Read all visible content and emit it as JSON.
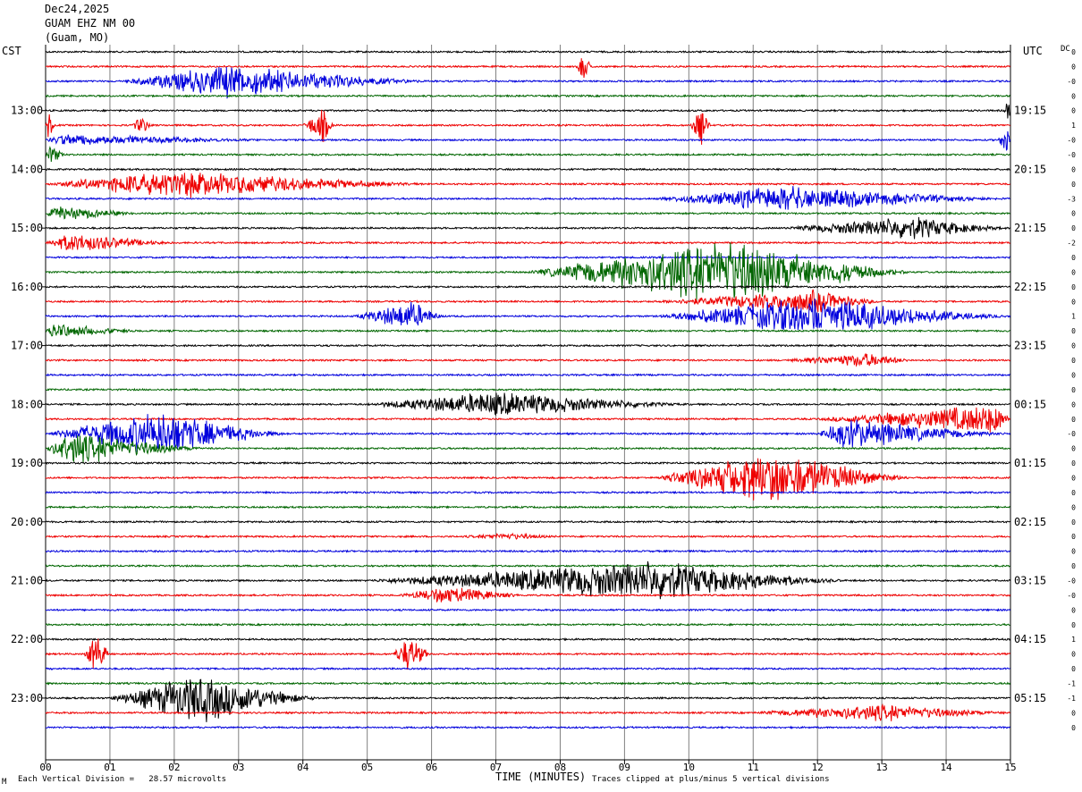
{
  "header": {
    "date": "Dec24,2025",
    "station": "GUAM EHZ NM 00",
    "location": "(Guam, MO)"
  },
  "labels": {
    "left_tz": "CST",
    "right_tz": "UTC",
    "dc_label": "DC",
    "x_title": "TIME (MINUTES)",
    "scale_note": "Each Vertical Division =   28.57 microvolts",
    "clip_note": "Traces clipped at plus/minus 5 vertical divisions",
    "corner_mark": "M"
  },
  "chart_data": {
    "type": "line",
    "title": "GUAM EHZ NM 00",
    "xlabel": "TIME (MINUTES)",
    "xlim": [
      0,
      15
    ],
    "x_ticks": [
      "00",
      "01",
      "02",
      "03",
      "04",
      "05",
      "06",
      "07",
      "08",
      "09",
      "10",
      "11",
      "12",
      "13",
      "14",
      "15"
    ],
    "left_hour_labels": [
      "13:00",
      "14:00",
      "15:00",
      "16:00",
      "17:00",
      "18:00",
      "19:00",
      "20:00",
      "21:00",
      "22:00",
      "23:00"
    ],
    "right_hour_labels": [
      "19:15",
      "20:15",
      "21:15",
      "22:15",
      "23:15",
      "00:15",
      "01:15",
      "02:15",
      "03:15",
      "04:15",
      "05:15"
    ],
    "trace_colors": [
      "#000000",
      "#ee0000",
      "#0000dd",
      "#006600"
    ],
    "dc_offsets": [
      "0",
      "0",
      "-0",
      "0",
      "0",
      "1",
      "-0",
      "-0",
      "0",
      "0",
      "-3",
      "0",
      "0",
      "-2",
      "0",
      "0",
      "0",
      "0",
      "1",
      "0",
      "0",
      "0",
      "0",
      "0",
      "0",
      "0",
      "-0",
      "0",
      "0",
      "0",
      "0",
      "0",
      "0",
      "0",
      "0",
      "0",
      "-0",
      "-0",
      "0",
      "0",
      "1",
      "0",
      "0",
      "-1",
      "-1",
      "0",
      "0"
    ],
    "grid": true,
    "events": [
      {
        "trace": 2,
        "start": 1.2,
        "end": 6.0,
        "amp": 1.2,
        "peak": 2.8
      },
      {
        "trace": 1,
        "start": 8.25,
        "end": 8.5,
        "amp": 1.2,
        "peak": 8.35
      },
      {
        "trace": 4,
        "start": 14.9,
        "end": 15.0,
        "amp": 1.0,
        "peak": 14.97
      },
      {
        "trace": 5,
        "start": 0.0,
        "end": 0.15,
        "amp": 1.0,
        "peak": 0.05
      },
      {
        "trace": 5,
        "start": 1.35,
        "end": 1.65,
        "amp": 0.8,
        "peak": 1.5
      },
      {
        "trace": 5,
        "start": 4.0,
        "end": 4.5,
        "amp": 1.3,
        "peak": 4.3
      },
      {
        "trace": 5,
        "start": 10.0,
        "end": 10.35,
        "amp": 1.4,
        "peak": 10.2
      },
      {
        "trace": 6,
        "start": 0.0,
        "end": 3.5,
        "amp": 0.4,
        "peak": 0.3
      },
      {
        "trace": 6,
        "start": 14.8,
        "end": 15.0,
        "amp": 1.0,
        "peak": 14.95
      },
      {
        "trace": 7,
        "start": 0.0,
        "end": 0.3,
        "amp": 0.8,
        "peak": 0.1
      },
      {
        "trace": 9,
        "start": 0.0,
        "end": 6.0,
        "amp": 1.0,
        "peak": 2.0
      },
      {
        "trace": 10,
        "start": 9.5,
        "end": 15.0,
        "amp": 0.9,
        "peak": 11.5
      },
      {
        "trace": 11,
        "start": 0.0,
        "end": 1.5,
        "amp": 0.5,
        "peak": 0.2
      },
      {
        "trace": 12,
        "start": 11.5,
        "end": 15.0,
        "amp": 0.8,
        "peak": 13.5
      },
      {
        "trace": 13,
        "start": 0.0,
        "end": 2.0,
        "amp": 0.7,
        "peak": 0.4
      },
      {
        "trace": 15,
        "start": 7.5,
        "end": 13.5,
        "amp": 2.4,
        "peak": 10.6
      },
      {
        "trace": 17,
        "start": 9.5,
        "end": 13.0,
        "amp": 0.8,
        "peak": 12.0
      },
      {
        "trace": 18,
        "start": 4.8,
        "end": 6.2,
        "amp": 1.1,
        "peak": 5.7
      },
      {
        "trace": 18,
        "start": 9.5,
        "end": 15.0,
        "amp": 1.4,
        "peak": 12.0
      },
      {
        "trace": 19,
        "start": 0.0,
        "end": 1.5,
        "amp": 0.5,
        "peak": 0.1
      },
      {
        "trace": 21,
        "start": 11.5,
        "end": 13.5,
        "amp": 0.5,
        "peak": 12.8
      },
      {
        "trace": 24,
        "start": 5.0,
        "end": 10.0,
        "amp": 0.9,
        "peak": 7.0
      },
      {
        "trace": 25,
        "start": 12.0,
        "end": 15.0,
        "amp": 1.1,
        "peak": 14.8
      },
      {
        "trace": 26,
        "start": 0.0,
        "end": 3.8,
        "amp": 1.6,
        "peak": 1.8
      },
      {
        "trace": 26,
        "start": 12.0,
        "end": 15.0,
        "amp": 1.1,
        "peak": 12.4
      },
      {
        "trace": 27,
        "start": 0.0,
        "end": 2.5,
        "amp": 1.2,
        "peak": 0.4
      },
      {
        "trace": 29,
        "start": 9.5,
        "end": 13.5,
        "amp": 2.0,
        "peak": 11.3
      },
      {
        "trace": 33,
        "start": 6.5,
        "end": 8.0,
        "amp": 0.2,
        "peak": 7.2
      },
      {
        "trace": 36,
        "start": 5.0,
        "end": 12.5,
        "amp": 1.4,
        "peak": 9.5
      },
      {
        "trace": 37,
        "start": 5.5,
        "end": 7.5,
        "amp": 0.6,
        "peak": 6.3
      },
      {
        "trace": 41,
        "start": 0.6,
        "end": 1.0,
        "amp": 1.6,
        "peak": 0.8
      },
      {
        "trace": 41,
        "start": 5.4,
        "end": 6.0,
        "amp": 1.4,
        "peak": 5.65
      },
      {
        "trace": 44,
        "start": 1.0,
        "end": 4.3,
        "amp": 1.8,
        "peak": 2.4
      },
      {
        "trace": 45,
        "start": 11.0,
        "end": 15.0,
        "amp": 0.6,
        "peak": 13.0
      }
    ]
  }
}
